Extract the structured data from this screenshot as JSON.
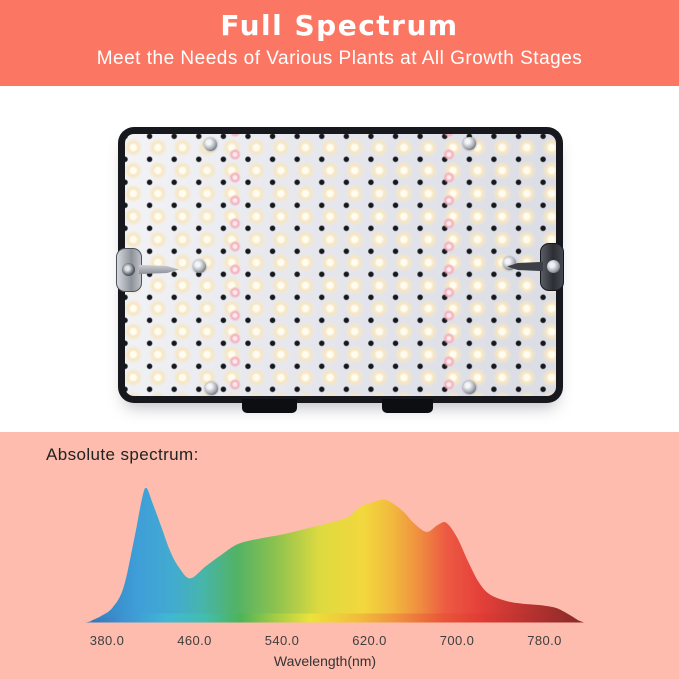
{
  "header": {
    "title": "Full Spectrum",
    "subtitle": "Meet the Needs of Various Plants at All Growth Stages",
    "background_color": "#fc7763",
    "text_color": "#ffffff"
  },
  "product_photo": {
    "alt": "LED grow light quantum board panel",
    "frame_color": "#17181d",
    "board_color": "#e8e9ef",
    "warm_led_glow_color": "#f7e6c2",
    "red_led_color": "#f3aebc"
  },
  "spectrum_section": {
    "heading": "Absolute spectrum:",
    "background_color": "#fdbcad"
  },
  "chart_data": {
    "type": "area",
    "title": "Absolute spectrum:",
    "xlabel": "Wavelength(nm)",
    "ylabel": "",
    "x_tick_labels": [
      "380.0",
      "460.0",
      "540.0",
      "620.0",
      "700.0",
      "780.0"
    ],
    "x_tick_values": [
      380,
      460,
      540,
      620,
      700,
      780
    ],
    "xlim": [
      362,
      812
    ],
    "ylim": [
      0,
      1.05
    ],
    "grid": false,
    "legend": false,
    "label_color": "#3f3f3f",
    "series": [
      {
        "name": "absolute spectrum",
        "x_nm": [
          365,
          375,
          385,
          395,
          405,
          412,
          416,
          422,
          430,
          438,
          446,
          456,
          470,
          485,
          500,
          520,
          540,
          560,
          580,
          600,
          612,
          622,
          635,
          650,
          660,
          672,
          682,
          690,
          700,
          710,
          720,
          730,
          745,
          760,
          775,
          790,
          800,
          810
        ],
        "relative_intensity": [
          0.0,
          0.04,
          0.1,
          0.25,
          0.62,
          0.92,
          1.0,
          0.88,
          0.7,
          0.52,
          0.4,
          0.32,
          0.41,
          0.5,
          0.58,
          0.62,
          0.65,
          0.69,
          0.73,
          0.78,
          0.86,
          0.89,
          0.91,
          0.83,
          0.74,
          0.67,
          0.72,
          0.74,
          0.63,
          0.45,
          0.29,
          0.2,
          0.15,
          0.13,
          0.12,
          0.1,
          0.06,
          0.01
        ]
      }
    ],
    "fill_gradient": [
      {
        "offset": "0%",
        "color": "#3180c1"
      },
      {
        "offset": "10%",
        "color": "#3f9fd8"
      },
      {
        "offset": "17%",
        "color": "#42abd0"
      },
      {
        "offset": "23%",
        "color": "#47b5ab"
      },
      {
        "offset": "30%",
        "color": "#52b266"
      },
      {
        "offset": "38%",
        "color": "#8cc24f"
      },
      {
        "offset": "47%",
        "color": "#ddda40"
      },
      {
        "offset": "56%",
        "color": "#f2d83d"
      },
      {
        "offset": "62%",
        "color": "#f2b93e"
      },
      {
        "offset": "68%",
        "color": "#ef8a40"
      },
      {
        "offset": "73%",
        "color": "#ed5a43"
      },
      {
        "offset": "80%",
        "color": "#e5403a"
      },
      {
        "offset": "88%",
        "color": "#c23531"
      },
      {
        "offset": "100%",
        "color": "#8a2b28"
      }
    ],
    "axis_bar_gradient": [
      {
        "offset": "0%",
        "color": "#366fb3"
      },
      {
        "offset": "8%",
        "color": "#3f95d4"
      },
      {
        "offset": "16%",
        "color": "#41b6d6"
      },
      {
        "offset": "24%",
        "color": "#43bdae"
      },
      {
        "offset": "31%",
        "color": "#4cb457"
      },
      {
        "offset": "38%",
        "color": "#a3cc45"
      },
      {
        "offset": "45%",
        "color": "#ece23a"
      },
      {
        "offset": "55%",
        "color": "#f1bc3c"
      },
      {
        "offset": "63%",
        "color": "#ef8e3e"
      },
      {
        "offset": "72%",
        "color": "#e85439"
      },
      {
        "offset": "80%",
        "color": "#dd3b34"
      },
      {
        "offset": "90%",
        "color": "#b33130"
      },
      {
        "offset": "100%",
        "color": "#872a27"
      }
    ]
  }
}
